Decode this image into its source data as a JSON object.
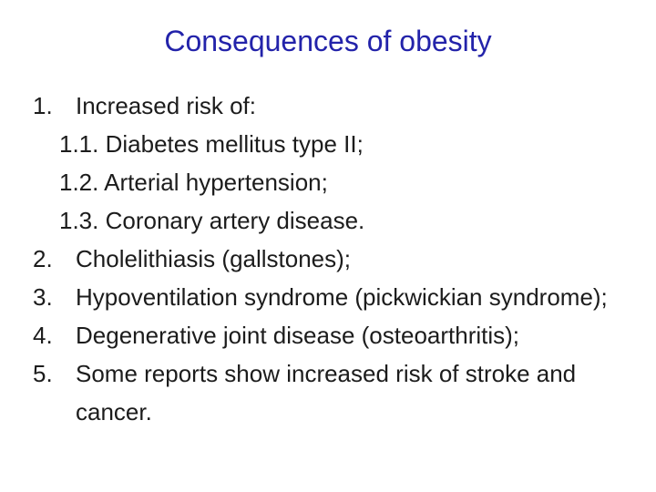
{
  "slide": {
    "title": "Consequences of obesity",
    "colors": {
      "title": "#2323aa",
      "body": "#1c1c1c",
      "background": "#ffffff"
    },
    "list": {
      "items": [
        {
          "number": "1.",
          "text": "Increased risk of:",
          "subitems": [
            "1.1. Diabetes mellitus type II;",
            "1.2. Arterial hypertension;",
            "1.3. Coronary artery disease."
          ]
        },
        {
          "number": "2.",
          "text": "Cholelithiasis (gallstones);"
        },
        {
          "number": "3.",
          "text": "Hypoventilation syndrome (pickwickian syndrome);"
        },
        {
          "number": "4.",
          "text": "Degenerative joint disease (osteoarthritis);"
        },
        {
          "number": "5.",
          "text": "Some reports show increased risk of stroke and cancer."
        }
      ]
    }
  }
}
